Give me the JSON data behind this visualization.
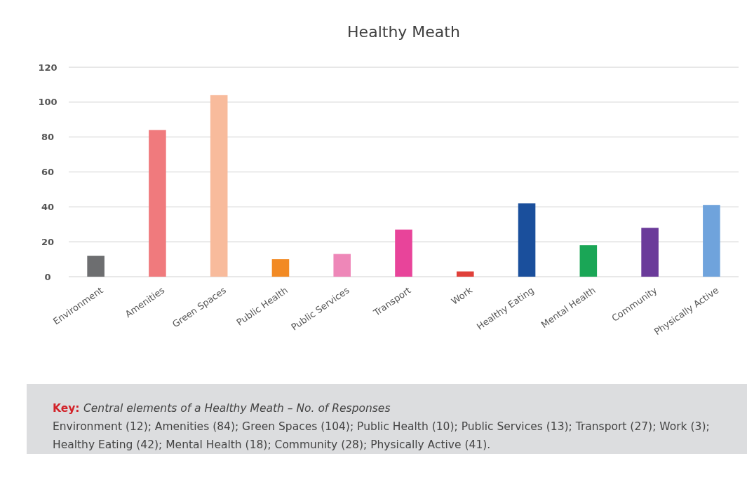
{
  "chart_data": {
    "type": "bar",
    "title": "Healthy Meath",
    "categories": [
      "Environment",
      "Amenities",
      "Green Spaces",
      "Public Health",
      "Public Services",
      "Transport",
      "Work",
      "Healthy Eating",
      "Mental Health",
      "Community",
      "Physically Active"
    ],
    "values": [
      12,
      84,
      104,
      10,
      13,
      27,
      3,
      42,
      18,
      28,
      41
    ],
    "colors": [
      "#6d6e70",
      "#f07a7d",
      "#f8bb9c",
      "#f28a24",
      "#ee87b8",
      "#e8449a",
      "#e0403a",
      "#1a4f9c",
      "#1aa656",
      "#6b3b9a",
      "#6fa3dc"
    ],
    "ylim": [
      0,
      120
    ],
    "yticks": [
      0,
      20,
      40,
      60,
      80,
      100,
      120
    ],
    "grid": "y",
    "annotations": [
      "Key:",
      "Central elements of a Healthy Meath – No. of Responses",
      "Environment (12); Amenities (84); Green Spaces (104); Public Health (10); Public Services (13); Transport (27); Work (3); Healthy Eating (42); Mental Health (18); Community (28); Physically Active (41)."
    ]
  }
}
